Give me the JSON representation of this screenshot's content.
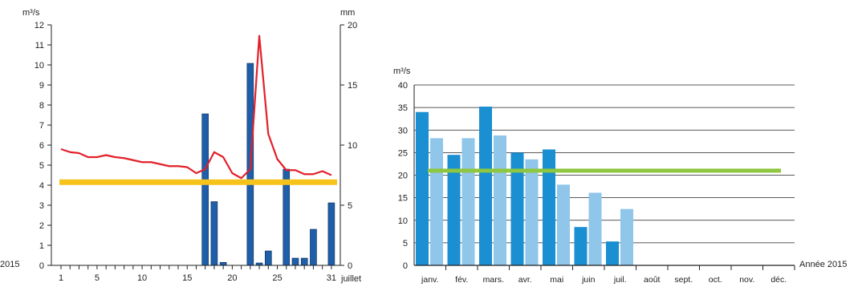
{
  "colors": {
    "precip_bar": "#1f5ea8",
    "flow_line": "#e3202a",
    "reference_line": "#f6c31c",
    "bar_2015": "#1a8fd1",
    "bar_normal": "#8fc6ea",
    "annual_mean_line": "#8dc63f",
    "axis": "#222222"
  },
  "chart_data": [
    {
      "type": "bar",
      "x_unit_label": "juillet",
      "left_axis": {
        "unit_label": "m³/s",
        "ylim": [
          0,
          12
        ],
        "ticks": [
          0,
          1,
          2,
          3,
          4,
          5,
          6,
          7,
          8,
          9,
          10,
          11,
          12
        ]
      },
      "right_axis": {
        "unit_label": "mm",
        "ylim": [
          0,
          20
        ],
        "ticks": [
          0,
          5,
          10,
          15,
          20
        ]
      },
      "x_ticks": [
        1,
        5,
        10,
        15,
        20,
        25,
        31
      ],
      "x_range": [
        1,
        31
      ],
      "outside_label": "2015",
      "series": [
        {
          "kind": "bar",
          "axis": "right",
          "days": [
            17,
            18,
            19,
            22,
            23,
            24,
            26,
            27,
            28,
            29,
            31
          ],
          "values": [
            12.6,
            5.3,
            0.25,
            16.8,
            0.2,
            1.2,
            8.0,
            0.6,
            0.6,
            3.0,
            5.2
          ]
        },
        {
          "kind": "line",
          "axis": "left",
          "days": [
            1,
            2,
            3,
            4,
            5,
            6,
            7,
            8,
            9,
            10,
            11,
            12,
            13,
            14,
            15,
            16,
            17,
            18,
            19,
            20,
            21,
            22,
            23,
            24,
            25,
            26,
            27,
            28,
            29,
            30,
            31
          ],
          "values": [
            5.8,
            5.65,
            5.6,
            5.4,
            5.4,
            5.5,
            5.4,
            5.35,
            5.25,
            5.15,
            5.15,
            5.05,
            4.95,
            4.95,
            4.9,
            4.6,
            4.8,
            5.65,
            5.4,
            4.6,
            4.35,
            4.8,
            11.45,
            6.55,
            5.3,
            4.75,
            4.75,
            4.55,
            4.55,
            4.7,
            4.5
          ]
        },
        {
          "kind": "hline",
          "axis": "left",
          "value": 4.15
        }
      ]
    },
    {
      "type": "bar",
      "unit_label": "m³/s",
      "ylim": [
        0,
        40
      ],
      "yticks": [
        0,
        5,
        10,
        15,
        20,
        25,
        30,
        35,
        40
      ],
      "grid": true,
      "categories": [
        "janv.",
        "fév.",
        "mars.",
        "avr.",
        "mai",
        "juin",
        "juil.",
        "août",
        "sept.",
        "oct.",
        "nov.",
        "déc."
      ],
      "x_axis_label": "Année 2015",
      "series": [
        {
          "values": [
            34,
            24.5,
            35.2,
            25,
            25.7,
            8.5,
            5.3,
            null,
            null,
            null,
            null,
            null
          ]
        },
        {
          "values": [
            28.2,
            28.2,
            28.8,
            23.5,
            17.9,
            16.1,
            12.5,
            null,
            null,
            null,
            null,
            null
          ]
        }
      ],
      "hline_value": 21
    }
  ]
}
